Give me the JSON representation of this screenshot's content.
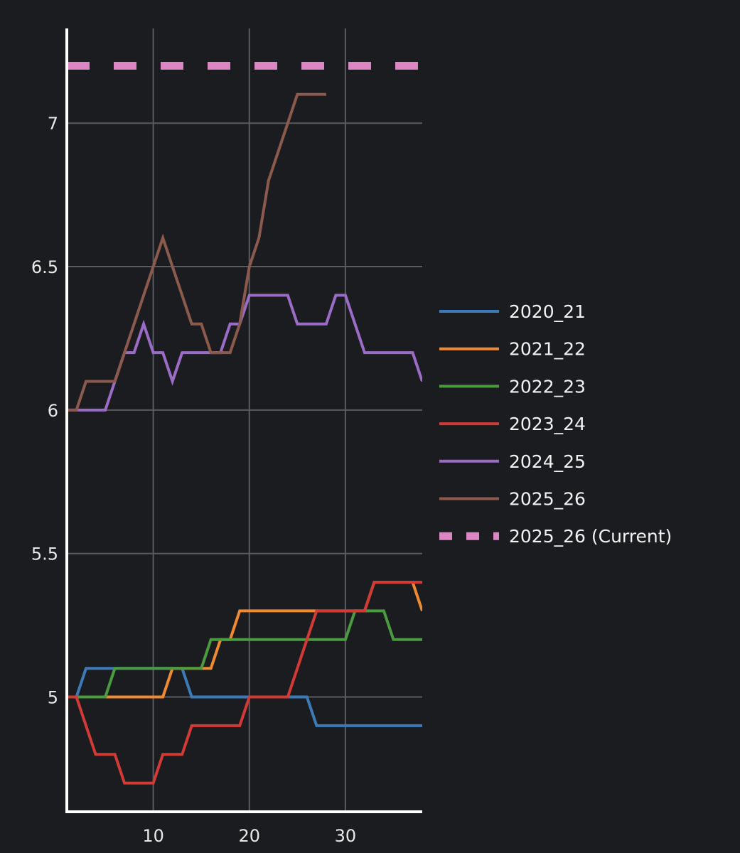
{
  "chart_data": {
    "type": "line",
    "xlim": [
      1,
      38
    ],
    "ylim": [
      4.6,
      7.33
    ],
    "grid": true,
    "legend_position": "right",
    "x_ticks": [
      {
        "value": 10,
        "label": "10"
      },
      {
        "value": 20,
        "label": "20"
      },
      {
        "value": 30,
        "label": "30"
      }
    ],
    "y_ticks": [
      {
        "value": 5,
        "label": "5"
      },
      {
        "value": 5.5,
        "label": "5.5"
      },
      {
        "value": 6,
        "label": "6"
      },
      {
        "value": 6.5,
        "label": "6.5"
      },
      {
        "value": 7,
        "label": "7"
      }
    ],
    "series": [
      {
        "name": "2020_21",
        "color": "#3d7ab8",
        "dash": false,
        "x": [
          1,
          2,
          3,
          4,
          5,
          6,
          7,
          8,
          9,
          10,
          11,
          12,
          13,
          14,
          15,
          16,
          17,
          18,
          19,
          20,
          21,
          22,
          23,
          24,
          25,
          26,
          27,
          28,
          29,
          30,
          31,
          32,
          33,
          34,
          35,
          36,
          37,
          38
        ],
        "y": [
          5.0,
          5.0,
          5.1,
          5.1,
          5.1,
          5.1,
          5.1,
          5.1,
          5.1,
          5.1,
          5.1,
          5.1,
          5.1,
          5.0,
          5.0,
          5.0,
          5.0,
          5.0,
          5.0,
          5.0,
          5.0,
          5.0,
          5.0,
          5.0,
          5.0,
          5.0,
          4.9,
          4.9,
          4.9,
          4.9,
          4.9,
          4.9,
          4.9,
          4.9,
          4.9,
          4.9,
          4.9,
          4.9
        ]
      },
      {
        "name": "2021_22",
        "color": "#f08a32",
        "dash": false,
        "x": [
          1,
          2,
          3,
          4,
          5,
          6,
          7,
          8,
          9,
          10,
          11,
          12,
          13,
          14,
          15,
          16,
          17,
          18,
          19,
          20,
          21,
          22,
          23,
          24,
          25,
          26,
          27,
          28,
          29,
          30,
          31,
          32,
          33,
          34,
          35,
          36,
          37,
          38
        ],
        "y": [
          5.0,
          5.0,
          5.0,
          5.0,
          5.0,
          5.0,
          5.0,
          5.0,
          5.0,
          5.0,
          5.0,
          5.1,
          5.1,
          5.1,
          5.1,
          5.1,
          5.2,
          5.2,
          5.3,
          5.3,
          5.3,
          5.3,
          5.3,
          5.3,
          5.3,
          5.3,
          5.3,
          5.3,
          5.3,
          5.3,
          5.3,
          5.3,
          5.4,
          5.4,
          5.4,
          5.4,
          5.4,
          5.3
        ]
      },
      {
        "name": "2022_23",
        "color": "#4a9a3f",
        "dash": false,
        "x": [
          1,
          2,
          3,
          4,
          5,
          6,
          7,
          8,
          9,
          10,
          11,
          12,
          13,
          14,
          15,
          16,
          17,
          18,
          19,
          20,
          21,
          22,
          23,
          24,
          25,
          26,
          27,
          28,
          29,
          30,
          31,
          32,
          33,
          34,
          35,
          36,
          37,
          38
        ],
        "y": [
          5.0,
          5.0,
          5.0,
          5.0,
          5.0,
          5.1,
          5.1,
          5.1,
          5.1,
          5.1,
          5.1,
          5.1,
          5.1,
          5.1,
          5.1,
          5.2,
          5.2,
          5.2,
          5.2,
          5.2,
          5.2,
          5.2,
          5.2,
          5.2,
          5.2,
          5.2,
          5.2,
          5.2,
          5.2,
          5.2,
          5.3,
          5.3,
          5.3,
          5.3,
          5.2,
          5.2,
          5.2,
          5.2
        ]
      },
      {
        "name": "2023_24",
        "color": "#d23a36",
        "dash": false,
        "x": [
          1,
          2,
          3,
          4,
          5,
          6,
          7,
          8,
          9,
          10,
          11,
          12,
          13,
          14,
          15,
          16,
          17,
          18,
          19,
          20,
          21,
          22,
          23,
          24,
          25,
          26,
          27,
          28,
          29,
          30,
          31,
          32,
          33,
          34,
          35,
          36,
          37,
          38
        ],
        "y": [
          5.0,
          5.0,
          4.9,
          4.8,
          4.8,
          4.8,
          4.7,
          4.7,
          4.7,
          4.7,
          4.8,
          4.8,
          4.8,
          4.9,
          4.9,
          4.9,
          4.9,
          4.9,
          4.9,
          5.0,
          5.0,
          5.0,
          5.0,
          5.0,
          5.1,
          5.2,
          5.3,
          5.3,
          5.3,
          5.3,
          5.3,
          5.3,
          5.4,
          5.4,
          5.4,
          5.4,
          5.4,
          5.4
        ]
      },
      {
        "name": "2024_25",
        "color": "#9b6cc6",
        "dash": false,
        "x": [
          1,
          2,
          3,
          4,
          5,
          6,
          7,
          8,
          9,
          10,
          11,
          12,
          13,
          14,
          15,
          16,
          17,
          18,
          19,
          20,
          21,
          22,
          23,
          24,
          25,
          26,
          27,
          28,
          29,
          30,
          31,
          32,
          33,
          34,
          35,
          36,
          37,
          38
        ],
        "y": [
          6.0,
          6.0,
          6.0,
          6.0,
          6.0,
          6.1,
          6.2,
          6.2,
          6.3,
          6.2,
          6.2,
          6.1,
          6.2,
          6.2,
          6.2,
          6.2,
          6.2,
          6.3,
          6.3,
          6.4,
          6.4,
          6.4,
          6.4,
          6.4,
          6.3,
          6.3,
          6.3,
          6.3,
          6.4,
          6.4,
          6.3,
          6.2,
          6.2,
          6.2,
          6.2,
          6.2,
          6.2,
          6.1
        ]
      },
      {
        "name": "2025_26",
        "color": "#8c5a4d",
        "dash": false,
        "x": [
          1,
          2,
          3,
          4,
          5,
          6,
          7,
          8,
          9,
          10,
          11,
          12,
          13,
          14,
          15,
          16,
          17,
          18,
          19,
          20,
          21,
          22,
          23,
          24,
          25,
          26,
          27,
          28
        ],
        "y": [
          6.0,
          6.0,
          6.1,
          6.1,
          6.1,
          6.1,
          6.2,
          6.3,
          6.4,
          6.5,
          6.6,
          6.5,
          6.4,
          6.3,
          6.3,
          6.2,
          6.2,
          6.2,
          6.3,
          6.5,
          6.6,
          6.8,
          6.9,
          7.0,
          7.1,
          7.1,
          7.1,
          7.1
        ]
      },
      {
        "name": "2025_26 (Current)",
        "color": "#dd86c4",
        "dash": true,
        "x": [
          1,
          38
        ],
        "y": [
          7.2,
          7.2
        ]
      }
    ]
  }
}
